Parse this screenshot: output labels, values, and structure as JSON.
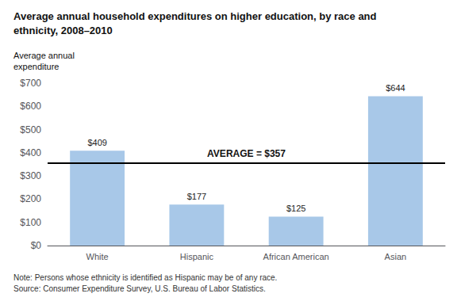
{
  "chart_data": {
    "type": "bar",
    "title": "Average annual household expenditures on higher education, by race and\nethnicity, 2008–2010",
    "ylabel": "Average annual\nexpenditure",
    "categories": [
      "White",
      "Hispanic",
      "African American",
      "Asian"
    ],
    "values": [
      409,
      177,
      125,
      644
    ],
    "value_labels": [
      "$409",
      "$177",
      "$125",
      "$644"
    ],
    "data_labels": true,
    "color": "#a8c8e8",
    "reference_line": {
      "value": 357,
      "label": "AVERAGE = $357"
    },
    "ylim": [
      0,
      700
    ],
    "yticks": [
      {
        "value": 0,
        "label": "$0"
      },
      {
        "value": 100,
        "label": "$100"
      },
      {
        "value": 200,
        "label": "$200"
      },
      {
        "value": 300,
        "label": "$300"
      },
      {
        "value": 400,
        "label": "$400"
      },
      {
        "value": 500,
        "label": "$500"
      },
      {
        "value": 600,
        "label": "$600"
      },
      {
        "value": 700,
        "label": "$700"
      }
    ],
    "grid": false,
    "notes": [
      "Note: Persons whose ethnicity is identified as Hispanic may be of any race.",
      "Source: Consumer Expenditure Survey, U.S. Bureau of Labor Statistics."
    ]
  }
}
